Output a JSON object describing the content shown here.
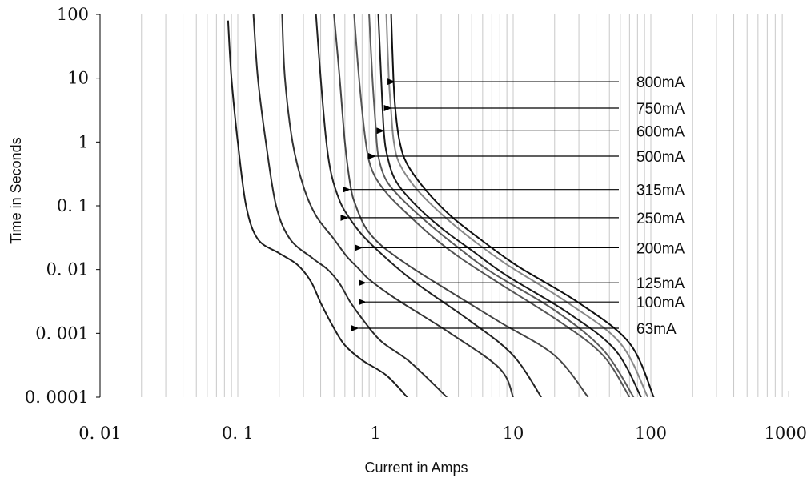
{
  "chart_data": {
    "type": "line",
    "title": "",
    "xlabel": "Current in Amps",
    "ylabel": "Time in Seconds",
    "x_scale": "log",
    "y_scale": "log",
    "xlim": [
      0.01,
      1000
    ],
    "ylim": [
      0.0001,
      100
    ],
    "x_tick_labels": [
      "0. 01",
      "0. 1",
      "1",
      "10",
      "100",
      "1000"
    ],
    "y_tick_labels": [
      "100",
      "10",
      "1",
      "0. 1",
      "0. 01",
      "0. 001",
      "0. 0001"
    ],
    "grid": "vertical minor lines",
    "legend": "none",
    "series": [
      {
        "name": "63mA",
        "color": "#1e1e1e",
        "label_at": {
          "x": 0.75,
          "y": 0.0012
        },
        "points": [
          [
            0.085,
            80
          ],
          [
            0.09,
            10
          ],
          [
            0.1,
            1
          ],
          [
            0.115,
            0.1
          ],
          [
            0.14,
            0.03
          ],
          [
            0.2,
            0.018
          ],
          [
            0.27,
            0.012
          ],
          [
            0.34,
            0.0065
          ],
          [
            0.4,
            0.003
          ],
          [
            0.5,
            0.0012
          ],
          [
            0.6,
            0.00065
          ],
          [
            0.8,
            0.00038
          ],
          [
            1.2,
            0.00022
          ],
          [
            1.7,
            0.0001
          ]
        ]
      },
      {
        "name": "100mA",
        "color": "#2a2a2a",
        "label_at": {
          "x": 0.85,
          "y": 0.0031
        },
        "points": [
          [
            0.13,
            100
          ],
          [
            0.14,
            10
          ],
          [
            0.16,
            1
          ],
          [
            0.19,
            0.1
          ],
          [
            0.24,
            0.03
          ],
          [
            0.35,
            0.015
          ],
          [
            0.45,
            0.01
          ],
          [
            0.55,
            0.006
          ],
          [
            0.65,
            0.0032
          ],
          [
            0.8,
            0.0017
          ],
          [
            1.1,
            0.00075
          ],
          [
            1.8,
            0.00035
          ],
          [
            3.3,
            0.0001
          ]
        ]
      },
      {
        "name": "125mA",
        "color": "#333333",
        "label_at": {
          "x": 0.85,
          "y": 0.0062
        },
        "points": [
          [
            0.21,
            100
          ],
          [
            0.22,
            10
          ],
          [
            0.25,
            1
          ],
          [
            0.3,
            0.2
          ],
          [
            0.37,
            0.07
          ],
          [
            0.5,
            0.03
          ],
          [
            0.62,
            0.016
          ],
          [
            0.75,
            0.0105
          ],
          [
            0.9,
            0.007
          ],
          [
            1.4,
            0.0035
          ],
          [
            3.5,
            0.001
          ],
          [
            8,
            0.00028
          ],
          [
            10,
            0.0001
          ]
        ]
      },
      {
        "name": "200mA",
        "color": "#222222",
        "label_at": {
          "x": 0.8,
          "y": 0.022
        },
        "points": [
          [
            0.37,
            100
          ],
          [
            0.4,
            10
          ],
          [
            0.44,
            1
          ],
          [
            0.48,
            0.3
          ],
          [
            0.55,
            0.12
          ],
          [
            0.63,
            0.07
          ],
          [
            0.8,
            0.035
          ],
          [
            1.2,
            0.015
          ],
          [
            2,
            0.006
          ],
          [
            5,
            0.0015
          ],
          [
            10,
            0.00045
          ],
          [
            16,
            0.0001
          ]
        ]
      },
      {
        "name": "250mA",
        "color": "#444444",
        "label_at": {
          "x": 0.63,
          "y": 0.065
        },
        "points": [
          [
            0.5,
            100
          ],
          [
            0.55,
            10
          ],
          [
            0.6,
            1
          ],
          [
            0.66,
            0.2
          ],
          [
            0.72,
            0.1
          ],
          [
            0.85,
            0.045
          ],
          [
            1.1,
            0.024
          ],
          [
            1.7,
            0.012
          ],
          [
            3,
            0.0055
          ],
          [
            8,
            0.0015
          ],
          [
            20,
            0.00045
          ],
          [
            35,
            0.0001
          ]
        ]
      },
      {
        "name": "315mA",
        "color": "#555555",
        "label_at": {
          "x": 0.65,
          "y": 0.18
        },
        "points": [
          [
            0.7,
            100
          ],
          [
            0.76,
            10
          ],
          [
            0.85,
            1
          ],
          [
            0.95,
            0.35
          ],
          [
            1.2,
            0.16
          ],
          [
            1.7,
            0.075
          ],
          [
            2.5,
            0.035
          ],
          [
            4,
            0.016
          ],
          [
            8,
            0.006
          ],
          [
            22,
            0.0015
          ],
          [
            45,
            0.00045
          ],
          [
            70,
            0.0001
          ]
        ]
      },
      {
        "name": "500mA",
        "color": "#5a5a5a",
        "label_at": {
          "x": 1.0,
          "y": 0.6
        },
        "points": [
          [
            0.9,
            100
          ],
          [
            0.95,
            10
          ],
          [
            1.0,
            2
          ],
          [
            1.05,
            0.6
          ],
          [
            1.2,
            0.25
          ],
          [
            1.6,
            0.12
          ],
          [
            2.5,
            0.05
          ],
          [
            4,
            0.022
          ],
          [
            7,
            0.009
          ],
          [
            20,
            0.0023
          ],
          [
            45,
            0.00055
          ],
          [
            75,
            0.0001
          ]
        ]
      },
      {
        "name": "600mA",
        "color": "#1a1a1a",
        "label_at": {
          "x": 1.15,
          "y": 1.5
        },
        "points": [
          [
            1.05,
            100
          ],
          [
            1.1,
            10
          ],
          [
            1.15,
            1.5
          ],
          [
            1.22,
            0.6
          ],
          [
            1.4,
            0.25
          ],
          [
            1.9,
            0.11
          ],
          [
            3,
            0.045
          ],
          [
            5,
            0.02
          ],
          [
            9,
            0.008
          ],
          [
            25,
            0.0021
          ],
          [
            55,
            0.00055
          ],
          [
            85,
            0.0001
          ]
        ]
      },
      {
        "name": "750mA",
        "color": "#888888",
        "label_at": {
          "x": 1.3,
          "y": 3.4
        },
        "points": [
          [
            1.2,
            100
          ],
          [
            1.25,
            10
          ],
          [
            1.3,
            3
          ],
          [
            1.36,
            1
          ],
          [
            1.5,
            0.45
          ],
          [
            2,
            0.18
          ],
          [
            3,
            0.075
          ],
          [
            5,
            0.03
          ],
          [
            9,
            0.012
          ],
          [
            25,
            0.003
          ],
          [
            60,
            0.0007
          ],
          [
            95,
            0.0001
          ]
        ]
      },
      {
        "name": "800mA",
        "color": "#111111",
        "label_at": {
          "x": 1.38,
          "y": 8.8
        },
        "points": [
          [
            1.3,
            100
          ],
          [
            1.35,
            10
          ],
          [
            1.4,
            3
          ],
          [
            1.5,
            1
          ],
          [
            1.7,
            0.45
          ],
          [
            2.3,
            0.18
          ],
          [
            3.5,
            0.07
          ],
          [
            6,
            0.028
          ],
          [
            11,
            0.011
          ],
          [
            30,
            0.003
          ],
          [
            70,
            0.0007
          ],
          [
            105,
            0.0001
          ]
        ]
      }
    ]
  }
}
